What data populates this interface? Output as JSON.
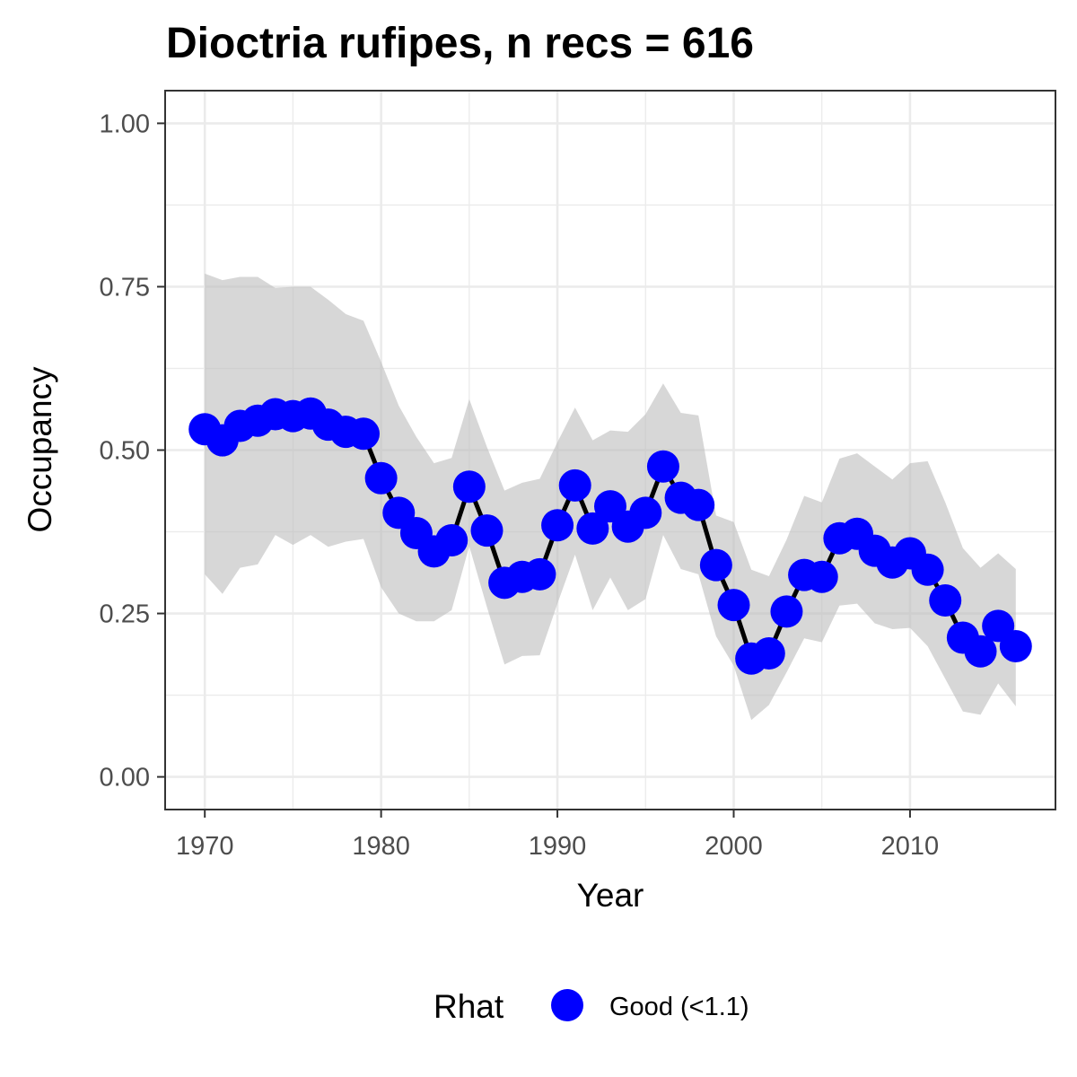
{
  "chart_data": {
    "type": "line",
    "title": "Dioctria rufipes, n recs = 616",
    "xlabel": "Year",
    "ylabel": "Occupancy",
    "xlim": [
      1967.75,
      1918.25
    ],
    "ylim": [
      -0.05,
      1.05
    ],
    "x_ticks": [
      1970,
      1980,
      1990,
      2000,
      2010
    ],
    "x_tick_labels": [
      "1970",
      "1980",
      "1990",
      "2000",
      "2010"
    ],
    "y_ticks": [
      0.0,
      0.25,
      0.5,
      0.75,
      1.0
    ],
    "y_tick_labels": [
      "0.00",
      "0.25",
      "0.50",
      "0.75",
      "1.00"
    ],
    "grid": true,
    "legend": {
      "title": "Rhat",
      "position": "bottom",
      "entries": [
        {
          "label": "Good (<1.1)",
          "color": "#0000ff"
        }
      ]
    },
    "colors": {
      "points": "#0000ff",
      "line": "#000000",
      "ribbon": "#bfbfbf",
      "grid": "#ebebeb",
      "panel_border": "#333333"
    },
    "x": [
      1970,
      1971,
      1972,
      1973,
      1974,
      1975,
      1976,
      1977,
      1978,
      1979,
      1980,
      1981,
      1982,
      1983,
      1984,
      1985,
      1986,
      1987,
      1988,
      1989,
      1990,
      1991,
      1992,
      1993,
      1994,
      1995,
      1996,
      1997,
      1998,
      1999,
      2000,
      2001,
      2002,
      2003,
      2004,
      2005,
      2006,
      2007,
      2008,
      2009,
      2010,
      2011,
      2012,
      2013,
      2014,
      2015,
      2016
    ],
    "series": [
      {
        "values": [
          0.532,
          0.515,
          0.537,
          0.545,
          0.555,
          0.552,
          0.556,
          0.539,
          0.528,
          0.525,
          0.457,
          0.404,
          0.373,
          0.345,
          0.362,
          0.444,
          0.377,
          0.297,
          0.306,
          0.31,
          0.385,
          0.446,
          0.38,
          0.414,
          0.383,
          0.404,
          0.475,
          0.427,
          0.416,
          0.324,
          0.263,
          0.181,
          0.189,
          0.253,
          0.309,
          0.306,
          0.365,
          0.372,
          0.346,
          0.328,
          0.342,
          0.317,
          0.27,
          0.213,
          0.192,
          0.231,
          0.2
        ],
        "lower": [
          0.31,
          0.28,
          0.32,
          0.325,
          0.37,
          0.355,
          0.37,
          0.352,
          0.36,
          0.364,
          0.29,
          0.25,
          0.238,
          0.238,
          0.255,
          0.353,
          0.26,
          0.172,
          0.185,
          0.186,
          0.265,
          0.34,
          0.255,
          0.305,
          0.255,
          0.272,
          0.37,
          0.318,
          0.31,
          0.215,
          0.17,
          0.087,
          0.11,
          0.16,
          0.212,
          0.206,
          0.262,
          0.265,
          0.235,
          0.226,
          0.228,
          0.2,
          0.15,
          0.1,
          0.095,
          0.143,
          0.108
        ],
        "upper": [
          0.77,
          0.76,
          0.765,
          0.765,
          0.748,
          0.75,
          0.75,
          0.73,
          0.708,
          0.698,
          0.635,
          0.568,
          0.52,
          0.48,
          0.488,
          0.578,
          0.505,
          0.438,
          0.45,
          0.456,
          0.512,
          0.565,
          0.515,
          0.53,
          0.528,
          0.555,
          0.602,
          0.557,
          0.553,
          0.4,
          0.39,
          0.317,
          0.307,
          0.363,
          0.43,
          0.42,
          0.487,
          0.495,
          0.475,
          0.455,
          0.48,
          0.483,
          0.42,
          0.35,
          0.32,
          0.342,
          0.318
        ]
      }
    ]
  }
}
